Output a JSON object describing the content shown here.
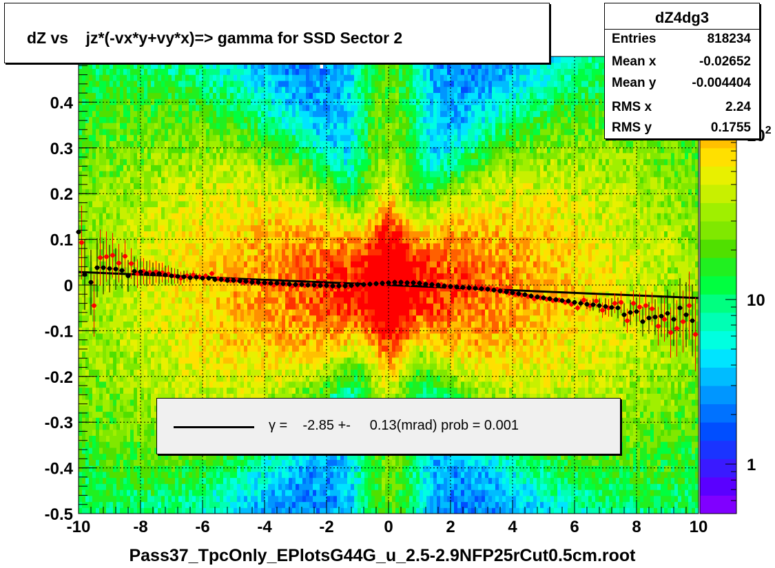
{
  "title": "dZ vs    jz*(-vx*y+vy*x)=> gamma for SSD Sector 2",
  "xlabel": "Pass37_TpcOnly_EPlotsG44G_u_2.5-2.9NFP25rCut0.5cm.root",
  "stats": {
    "name": "dZ4dg3",
    "rows": [
      {
        "label": "Entries",
        "value": "818234"
      },
      {
        "label": "Mean x",
        "value": "-0.02652"
      },
      {
        "label": "Mean y",
        "value": "-0.004404"
      },
      {
        "label": "RMS x",
        "value": "2.24"
      },
      {
        "label": "RMS y",
        "value": "0.1755"
      }
    ]
  },
  "legend": {
    "text": "γ =    -2.85 +-     0.13(mrad) prob = 0.001"
  },
  "chart_data": {
    "type": "heatmap",
    "title": "dZ vs    jz*(-vx*y+vy*x)=> gamma for SSD Sector 2",
    "xlabel": "Pass37_TpcOnly_EPlotsG44G_u_2.5-2.9NFP25rCut0.5cm.root",
    "ylabel": "",
    "xlim": [
      -10,
      10
    ],
    "ylim": [
      -0.5,
      0.5
    ],
    "x_ticks": [
      -10,
      -8,
      -6,
      -4,
      -2,
      0,
      2,
      4,
      6,
      8,
      10
    ],
    "x_tick_labels": [
      "-10",
      "-8",
      "-6",
      "-4",
      "-2",
      "0",
      "2",
      "4",
      "6",
      "8",
      "10"
    ],
    "y_ticks": [
      -0.5,
      -0.4,
      -0.3,
      -0.2,
      -0.1,
      0,
      0.1,
      0.2,
      0.3,
      0.4
    ],
    "y_tick_labels": [
      "-0.5",
      "-0.4",
      "-0.3",
      "-0.2",
      "-0.1",
      "0",
      "0.1",
      "0.2",
      "0.3",
      "0.4"
    ],
    "grid": true,
    "z_scale": "log",
    "z_range": [
      0.5,
      300
    ],
    "z_ticks": [
      {
        "value": 1,
        "base": "1",
        "exp": ""
      },
      {
        "value": 10,
        "base": "10",
        "exp": ""
      },
      {
        "value": 100,
        "base": "10",
        "exp": "2"
      }
    ],
    "palette": [
      "#8000ff",
      "#5a00ff",
      "#3a1aff",
      "#1a34ff",
      "#004eff",
      "#0072ff",
      "#0096ff",
      "#00bcff",
      "#00e4ff",
      "#00ffe0",
      "#00ffb4",
      "#00ff80",
      "#00ff40",
      "#20f020",
      "#50e000",
      "#80e800",
      "#a0ef00",
      "#c8f000",
      "#e8f000",
      "#ffe000",
      "#ffc000",
      "#ff9000",
      "#ff6000",
      "#ff3000",
      "#ff0000"
    ],
    "fit_line": {
      "x": [
        -10,
        10
      ],
      "y": [
        0.0285,
        -0.0285
      ],
      "color": "#000000"
    },
    "series": [
      {
        "color": "#ff0000",
        "x": [
          -9.9,
          -9.5,
          -9.3,
          -9.1,
          -8.9,
          -8.7,
          -8.5,
          -8.3,
          -8.1,
          -7.9,
          -7.7,
          -7.5,
          -7.3,
          -7.1,
          -6.9,
          -6.7,
          -6.5,
          -6.3,
          -6.1,
          -5.9,
          -5.7,
          -5.5,
          -5.3,
          -5.1,
          -4.9,
          -4.7,
          -4.5,
          -4.3,
          -4.1,
          -3.9,
          -3.7,
          -3.5,
          -3.3,
          -3.1,
          -2.9,
          -2.7,
          -2.5,
          -2.3,
          -2.1,
          -1.9,
          -1.7,
          -1.5,
          -1.3,
          -1.1,
          -0.9,
          -0.7,
          -0.5,
          -0.3,
          -0.1,
          0.1,
          0.3,
          0.5,
          0.7,
          0.9,
          1.1,
          1.3,
          1.5,
          1.7,
          1.9,
          2.1,
          2.3,
          2.5,
          2.7,
          2.9,
          3.1,
          3.3,
          3.5,
          3.7,
          3.9,
          4.1,
          4.3,
          4.5,
          4.7,
          4.9,
          5.1,
          5.3,
          5.5,
          5.7,
          5.9,
          6.1,
          6.3,
          6.5,
          6.7,
          6.9,
          7.1,
          7.3,
          7.5,
          7.7,
          7.9,
          8.1,
          8.3,
          8.5,
          8.7,
          8.9,
          9.1,
          9.3,
          9.5,
          9.7,
          9.9
        ],
        "y": [
          0.093,
          -0.045,
          0.06,
          0.062,
          0.065,
          0.048,
          0.063,
          0.047,
          0.025,
          0.03,
          0.028,
          0.029,
          0.027,
          0.024,
          0.02,
          0.015,
          0.02,
          0.022,
          0.018,
          0.02,
          0.025,
          0.014,
          0.012,
          0.01,
          0.011,
          0.006,
          0.008,
          0.006,
          0.002,
          0.004,
          0.0,
          0.003,
          0.002,
          -0.002,
          0.0,
          -0.001,
          0.001,
          -0.003,
          0.0,
          -0.002,
          -0.004,
          0.001,
          -0.004,
          -0.002,
          -0.005,
          0.003,
          -0.001,
          0.001,
          0.003,
          0.005,
          0.006,
          0.004,
          0.003,
          0.006,
          0.004,
          0.002,
          0.0,
          0.001,
          -0.003,
          -0.005,
          -0.002,
          -0.007,
          -0.006,
          -0.004,
          -0.008,
          -0.01,
          -0.009,
          -0.014,
          -0.018,
          -0.02,
          -0.022,
          -0.025,
          -0.03,
          -0.028,
          -0.031,
          -0.034,
          -0.033,
          -0.038,
          -0.042,
          -0.05,
          -0.033,
          -0.045,
          -0.035,
          -0.055,
          -0.05,
          -0.04,
          -0.038,
          -0.078,
          -0.04,
          -0.048,
          -0.045,
          -0.052,
          -0.09,
          -0.075,
          -0.104,
          -0.095,
          -0.08,
          -0.045,
          -0.108
        ]
      },
      {
        "color": "#000000",
        "x": [
          -10.0,
          -9.8,
          -9.6,
          -9.4,
          -9.2,
          -9.0,
          -8.8,
          -8.6,
          -8.4,
          -8.2,
          -8.0,
          -7.8,
          -7.6,
          -7.4,
          -7.2,
          -7.0,
          -6.8,
          -6.6,
          -6.4,
          -6.2,
          -6.0,
          -5.8,
          -5.6,
          -5.4,
          -5.2,
          -5.0,
          -4.8,
          -4.6,
          -4.4,
          -4.2,
          -4.0,
          -3.8,
          -3.6,
          -3.4,
          -3.2,
          -3.0,
          -2.8,
          -2.6,
          -2.4,
          -2.2,
          -2.0,
          -1.8,
          -1.6,
          -1.4,
          -1.2,
          -1.0,
          -0.8,
          -0.6,
          -0.4,
          -0.2,
          0.0,
          0.2,
          0.4,
          0.6,
          0.8,
          1.0,
          1.2,
          1.4,
          1.6,
          1.8,
          2.0,
          2.2,
          2.4,
          2.6,
          2.8,
          3.0,
          3.2,
          3.4,
          3.6,
          3.8,
          4.0,
          4.2,
          4.4,
          4.6,
          4.8,
          5.0,
          5.2,
          5.4,
          5.6,
          5.8,
          6.0,
          6.2,
          6.4,
          6.6,
          6.8,
          7.0,
          7.2,
          7.4,
          7.6,
          7.8,
          8.0,
          8.2,
          8.4,
          8.6,
          8.8,
          9.0,
          9.2,
          9.4,
          9.6,
          9.8
        ],
        "y": [
          0.116,
          0.023,
          0.006,
          0.038,
          0.038,
          0.036,
          0.035,
          0.032,
          0.02,
          0.03,
          0.029,
          0.025,
          0.024,
          0.025,
          0.022,
          0.02,
          0.019,
          0.018,
          0.016,
          0.017,
          0.015,
          0.015,
          0.012,
          0.012,
          0.01,
          0.01,
          0.009,
          0.008,
          0.006,
          0.006,
          0.005,
          0.004,
          0.004,
          0.003,
          0.002,
          0.001,
          0.001,
          0.0,
          0.0,
          -0.001,
          -0.001,
          -0.002,
          -0.002,
          -0.002,
          -0.001,
          0.001,
          0.001,
          0.002,
          0.003,
          0.004,
          0.005,
          0.006,
          0.006,
          0.005,
          0.005,
          0.004,
          0.002,
          0.001,
          0.0,
          -0.002,
          -0.003,
          -0.004,
          -0.005,
          -0.006,
          -0.007,
          -0.008,
          -0.009,
          -0.011,
          -0.013,
          -0.015,
          -0.017,
          -0.019,
          -0.021,
          -0.024,
          -0.026,
          -0.028,
          -0.03,
          -0.032,
          -0.034,
          -0.035,
          -0.038,
          -0.04,
          -0.042,
          -0.043,
          -0.045,
          -0.047,
          -0.049,
          -0.05,
          -0.065,
          -0.06,
          -0.058,
          -0.08,
          -0.072,
          -0.07,
          -0.068,
          -0.062,
          -0.075,
          -0.05,
          -0.065,
          -0.078
        ]
      }
    ]
  }
}
